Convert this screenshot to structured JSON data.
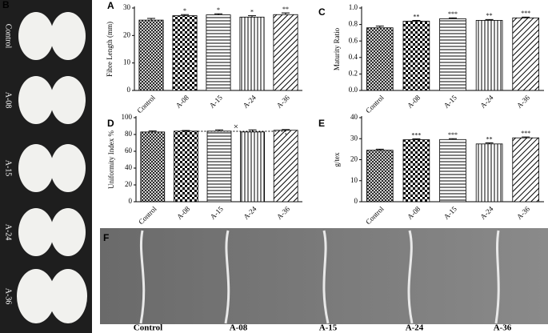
{
  "photos": {
    "panel": "B",
    "labels": [
      "Control",
      "A-08",
      "A-15",
      "A-24",
      "A-36"
    ]
  },
  "chart_data": [
    {
      "type": "bar",
      "panel": "A",
      "ylabel": "Fibre Length (mm)",
      "categories": [
        "Control",
        "A-08",
        "A-15",
        "A-24",
        "A-36"
      ],
      "values": [
        25.6,
        27.2,
        27.5,
        26.7,
        27.6
      ],
      "errors": [
        0.6,
        0.4,
        0.4,
        0.5,
        0.6
      ],
      "annotations": [
        null,
        "*",
        "*",
        "*",
        "**"
      ],
      "ylim": [
        0,
        30
      ],
      "yticks": [
        0,
        10,
        20,
        30
      ]
    },
    {
      "type": "bar",
      "panel": "C",
      "ylabel": "Maturity Ratio",
      "categories": [
        "Control",
        "A-08",
        "A-15",
        "A-24",
        "A-36"
      ],
      "values": [
        0.76,
        0.84,
        0.87,
        0.85,
        0.88
      ],
      "errors": [
        0.02,
        0.01,
        0.01,
        0.01,
        0.01
      ],
      "annotations": [
        null,
        "**",
        "***",
        "**",
        "***"
      ],
      "ylim": [
        0,
        1
      ],
      "yticks": [
        {
          "value": 0,
          "label": "0.0"
        },
        0.2,
        0.4,
        0.6,
        0.8,
        {
          "value": 1,
          "label": "1.0"
        }
      ]
    },
    {
      "type": "bar",
      "panel": "D",
      "ylabel": "Uniformity Index %",
      "categories": [
        "Control",
        "A-08",
        "A-15",
        "A-24",
        "A-36"
      ],
      "values": [
        83,
        84,
        84,
        83,
        85
      ],
      "errors": [
        1.2,
        0.8,
        1.5,
        2.5,
        0.8
      ],
      "annotations": [
        null,
        null,
        null,
        null,
        null
      ],
      "bracket_label": "×",
      "ylim": [
        0,
        100
      ],
      "yticks": [
        0,
        20,
        40,
        60,
        80,
        100
      ]
    },
    {
      "type": "bar",
      "panel": "E",
      "ylabel": "g/tex",
      "categories": [
        "Control",
        "A-08",
        "A-15",
        "A-24",
        "A-36"
      ],
      "values": [
        24.5,
        29.5,
        29.6,
        27.5,
        30.4
      ],
      "errors": [
        0.5,
        0.4,
        0.4,
        0.5,
        0.4
      ],
      "annotations": [
        null,
        "***",
        "***",
        "**",
        "***"
      ],
      "ylim": [
        0,
        40
      ],
      "yticks": [
        0,
        10,
        20,
        30,
        40
      ]
    }
  ],
  "sem": {
    "panel": "F",
    "labels": [
      "Control",
      "A-08",
      "A-15",
      "A-24",
      "A-36"
    ]
  }
}
